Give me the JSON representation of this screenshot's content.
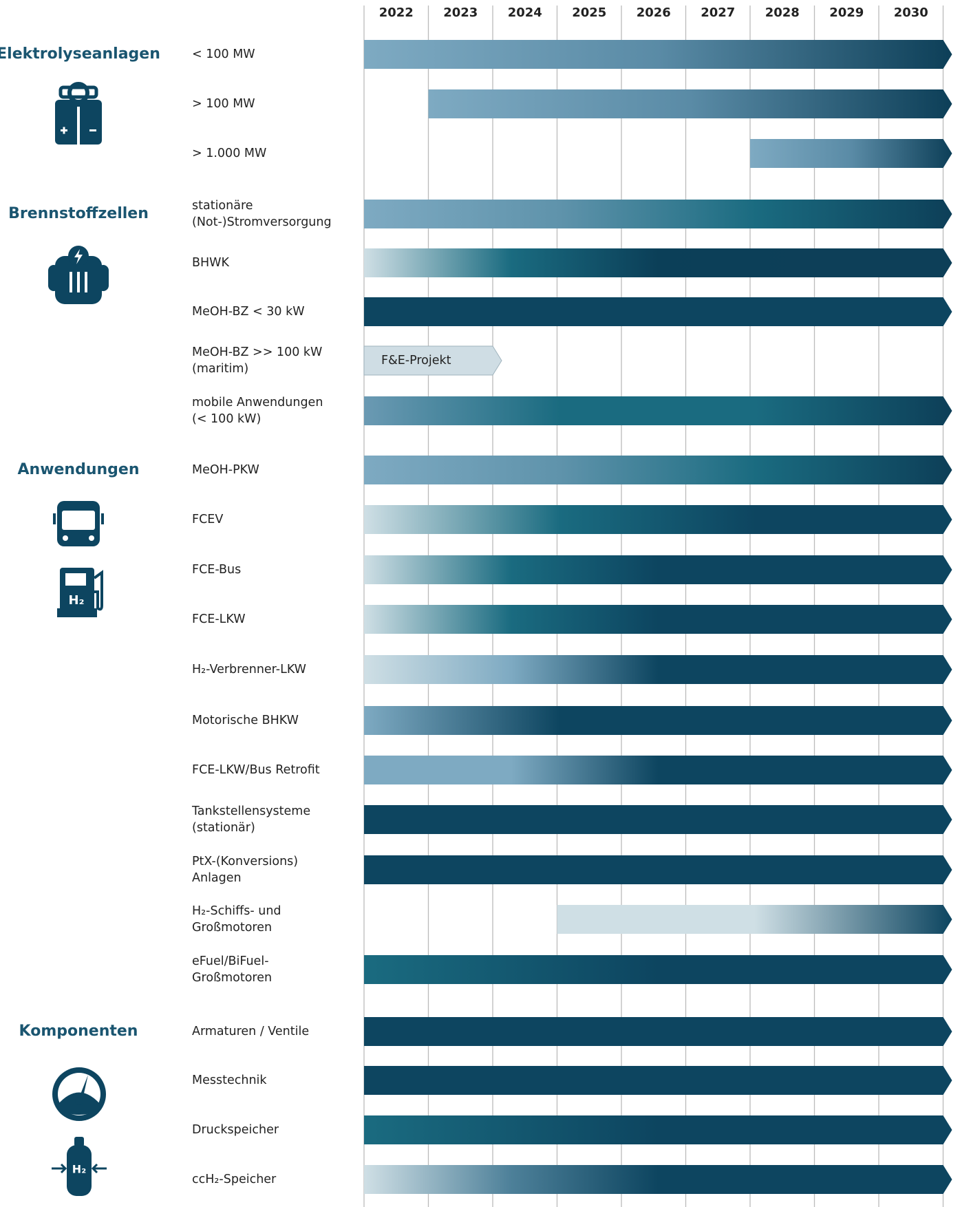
{
  "chart_data": {
    "type": "gantt",
    "xticks": [
      2022,
      2023,
      2024,
      2025,
      2026,
      2027,
      2028,
      2029,
      2030
    ],
    "groups": [
      {
        "name": "Elektrolyseanlagen",
        "tasks": [
          {
            "label": [
              "< 100 MW"
            ],
            "start": 2022,
            "colors": [
              "#7eaac2",
              "#5a8ba6",
              "#0d3f58"
            ]
          },
          {
            "label": [
              "> 100 MW"
            ],
            "start": 2023,
            "colors": [
              "#7eaac2",
              "#5a8ba6",
              "#0d3f58"
            ]
          },
          {
            "label": [
              "> 1.000 MW"
            ],
            "start": 2028,
            "colors": [
              "#7eaac2",
              "#5a8ba6",
              "#0d3f58"
            ]
          }
        ]
      },
      {
        "name": "Brennstoffzellen",
        "tasks": [
          {
            "label": [
              "stationäre",
              "(Not-)Stromversorgung"
            ],
            "start": 2022,
            "colors": [
              "#7eaac2",
              "#5f93ab",
              "#1a6b80",
              "#0d3f58"
            ]
          },
          {
            "label": [
              "BHWK"
            ],
            "start": 2022,
            "colors": [
              "#cfdfe5",
              "#1a6b80",
              "#0b3f58",
              "#0d3f58",
              "#0d3f58"
            ]
          },
          {
            "label": [
              "MeOH-BZ < 30 kW"
            ],
            "start": 2022,
            "colors": [
              "#0d4560",
              "#0d4560"
            ]
          },
          {
            "label": [
              "MeOH-BZ >> 100 kW",
              "(maritim)"
            ],
            "start": 2022,
            "end": 2023,
            "bar_label": "F&E-Projekt",
            "colors": [
              "#cfdde4",
              "#cfdde4"
            ]
          },
          {
            "label": [
              "mobile Anwendungen",
              "(< 100 kW)"
            ],
            "start": 2022,
            "colors": [
              "#6b9ab3",
              "#1a6b80",
              "#1a6b80",
              "#0d3f58"
            ]
          }
        ]
      },
      {
        "name": "Anwendungen",
        "tasks": [
          {
            "label": [
              "MeOH-PKW"
            ],
            "start": 2022,
            "colors": [
              "#7eaac2",
              "#5f93ab",
              "#1a6b80",
              "#0d3f58"
            ]
          },
          {
            "label": [
              "FCEV"
            ],
            "start": 2022,
            "colors": [
              "#cfdfe5",
              "#1a6b80",
              "#0d4560",
              "#0d4560"
            ]
          },
          {
            "label": [
              "FCE-Bus"
            ],
            "start": 2022,
            "colors": [
              "#cfdfe5",
              "#1a6b80",
              "#0d4560",
              "#0d4560",
              "#0d4560"
            ]
          },
          {
            "label": [
              "FCE-LKW"
            ],
            "start": 2022,
            "colors": [
              "#cfdfe5",
              "#1a6b80",
              "#0d4560",
              "#0d4560",
              "#0d4560"
            ]
          },
          {
            "label": [
              "H₂-Verbrenner-LKW"
            ],
            "start": 2022,
            "colors": [
              "#cfdfe5",
              "#7eaac2",
              "#0d4560",
              "#0d4560",
              "#0d4560"
            ]
          },
          {
            "label": [
              "Motorische BHKW"
            ],
            "start": 2022,
            "colors": [
              "#7eaac2",
              "#0d4560",
              "#0d4560",
              "#0d4560"
            ]
          },
          {
            "label": [
              "FCE-LKW/Bus Retrofit"
            ],
            "start": 2022,
            "colors": [
              "#7eaac2",
              "#7eaac2",
              "#0d4560",
              "#0d4560",
              "#0d4560"
            ]
          },
          {
            "label": [
              "Tankstellensysteme",
              "(stationär)"
            ],
            "start": 2022,
            "colors": [
              "#0d4560",
              "#0d4560"
            ]
          },
          {
            "label": [
              "PtX-(Konversions)",
              "Anlagen"
            ],
            "start": 2022,
            "colors": [
              "#0d4560",
              "#0d4560"
            ]
          },
          {
            "label": [
              "H₂-Schiffs- und",
              "Großmotoren"
            ],
            "start": 2025,
            "colors": [
              "#cfdfe5",
              "#cfdfe5",
              "#0d4560"
            ]
          },
          {
            "label": [
              "eFuel/BiFuel-",
              "Großmotoren"
            ],
            "start": 2022,
            "colors": [
              "#1a6b80",
              "#0d4560",
              "#0d4560"
            ]
          }
        ]
      },
      {
        "name": "Komponenten",
        "tasks": [
          {
            "label": [
              "Armaturen / Ventile"
            ],
            "start": 2022,
            "colors": [
              "#0d4560",
              "#0d4560"
            ]
          },
          {
            "label": [
              "Messtechnik"
            ],
            "start": 2022,
            "colors": [
              "#0d4560",
              "#0d4560"
            ]
          },
          {
            "label": [
              "Druckspeicher"
            ],
            "start": 2022,
            "colors": [
              "#1a6b80",
              "#0d4560",
              "#0d4560"
            ]
          },
          {
            "label": [
              "ccH₂-Speicher"
            ],
            "start": 2022,
            "colors": [
              "#cfdfe5",
              "#4d8099",
              "#0d4560",
              "#0d4560",
              "#0d4560"
            ]
          }
        ]
      }
    ]
  }
}
